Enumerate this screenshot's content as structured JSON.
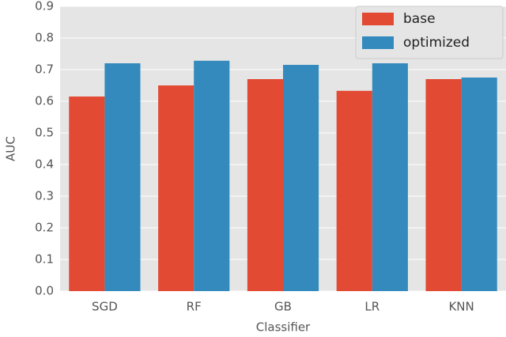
{
  "chart_data": {
    "type": "bar",
    "xlabel": "Classifier",
    "ylabel": "AUC",
    "categories": [
      "SGD",
      "RF",
      "GB",
      "LR",
      "KNN"
    ],
    "series": [
      {
        "name": "base",
        "color": "#E24A33",
        "values": [
          0.615,
          0.65,
          0.67,
          0.633,
          0.67
        ]
      },
      {
        "name": "optimized",
        "color": "#348ABD",
        "values": [
          0.72,
          0.728,
          0.715,
          0.72,
          0.675
        ]
      }
    ],
    "ylim": [
      0,
      0.9
    ],
    "yticks": [
      {
        "value": 0,
        "label": "0.0"
      },
      0.1,
      0.2,
      0.3,
      0.4,
      0.5,
      0.6,
      0.7,
      0.8,
      0.9
    ],
    "grid": true,
    "legend": "upper right"
  }
}
